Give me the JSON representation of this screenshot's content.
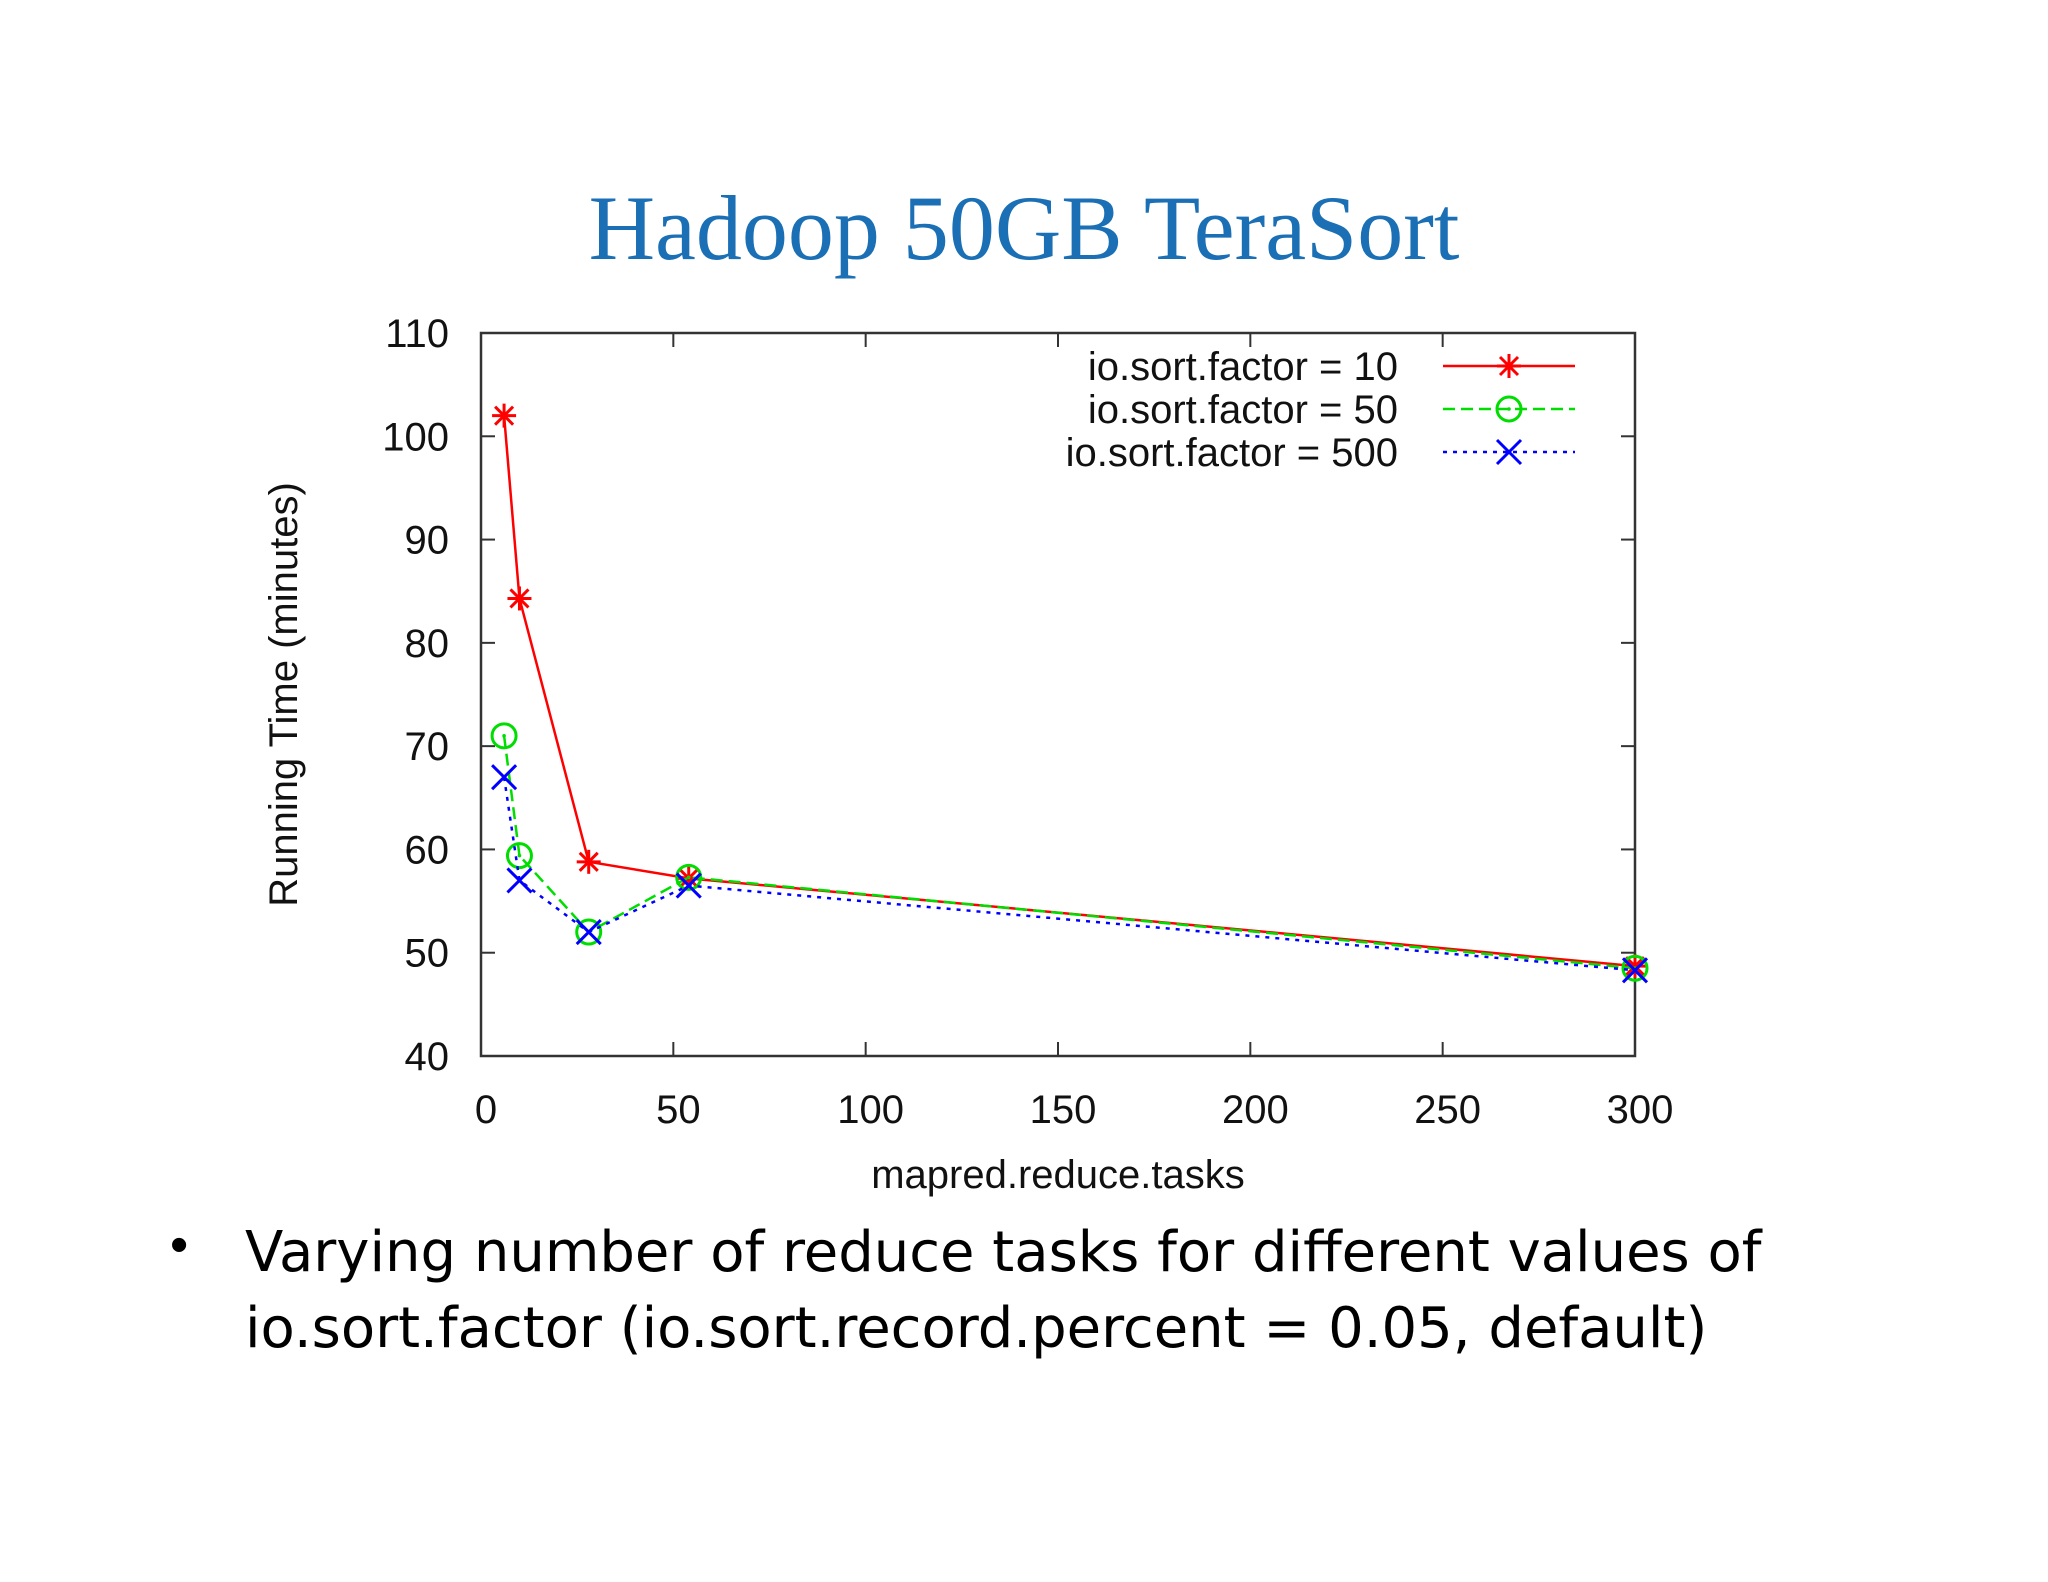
{
  "slide": {
    "title": "Hadoop 50GB TeraSort",
    "bullet": "Varying number of reduce tasks for different values of\nio.sort.factor (io.sort.record.percent = 0.05, default)"
  },
  "chart_data": {
    "type": "line",
    "title": "Hadoop 50GB TeraSort",
    "xlabel": "mapred.reduce.tasks",
    "ylabel": "Running Time (minutes)",
    "xlim": [
      0,
      300
    ],
    "ylim": [
      40,
      110
    ],
    "xticks": [
      0,
      50,
      100,
      150,
      200,
      250,
      300
    ],
    "yticks": [
      40,
      50,
      60,
      70,
      80,
      90,
      100,
      110
    ],
    "grid": false,
    "legend_position": "top-right",
    "series": [
      {
        "name": "io.sort.factor = 10",
        "color": "#ff0000",
        "marker": "asterisk",
        "dash": "solid",
        "x": [
          6,
          10,
          28,
          54,
          300
        ],
        "values": [
          102,
          84.3,
          58.8,
          57.2,
          48.7
        ]
      },
      {
        "name": "io.sort.factor = 50",
        "color": "#00dd00",
        "marker": "circle",
        "dash": "dashed",
        "x": [
          6,
          10,
          28,
          54,
          300
        ],
        "values": [
          71,
          59.4,
          52,
          57.3,
          48.5
        ]
      },
      {
        "name": "io.sort.factor = 500",
        "color": "#0000ff",
        "marker": "x",
        "dash": "dotted",
        "x": [
          6,
          10,
          28,
          54,
          300
        ],
        "values": [
          67,
          57,
          52,
          56.5,
          48.3
        ]
      }
    ]
  }
}
